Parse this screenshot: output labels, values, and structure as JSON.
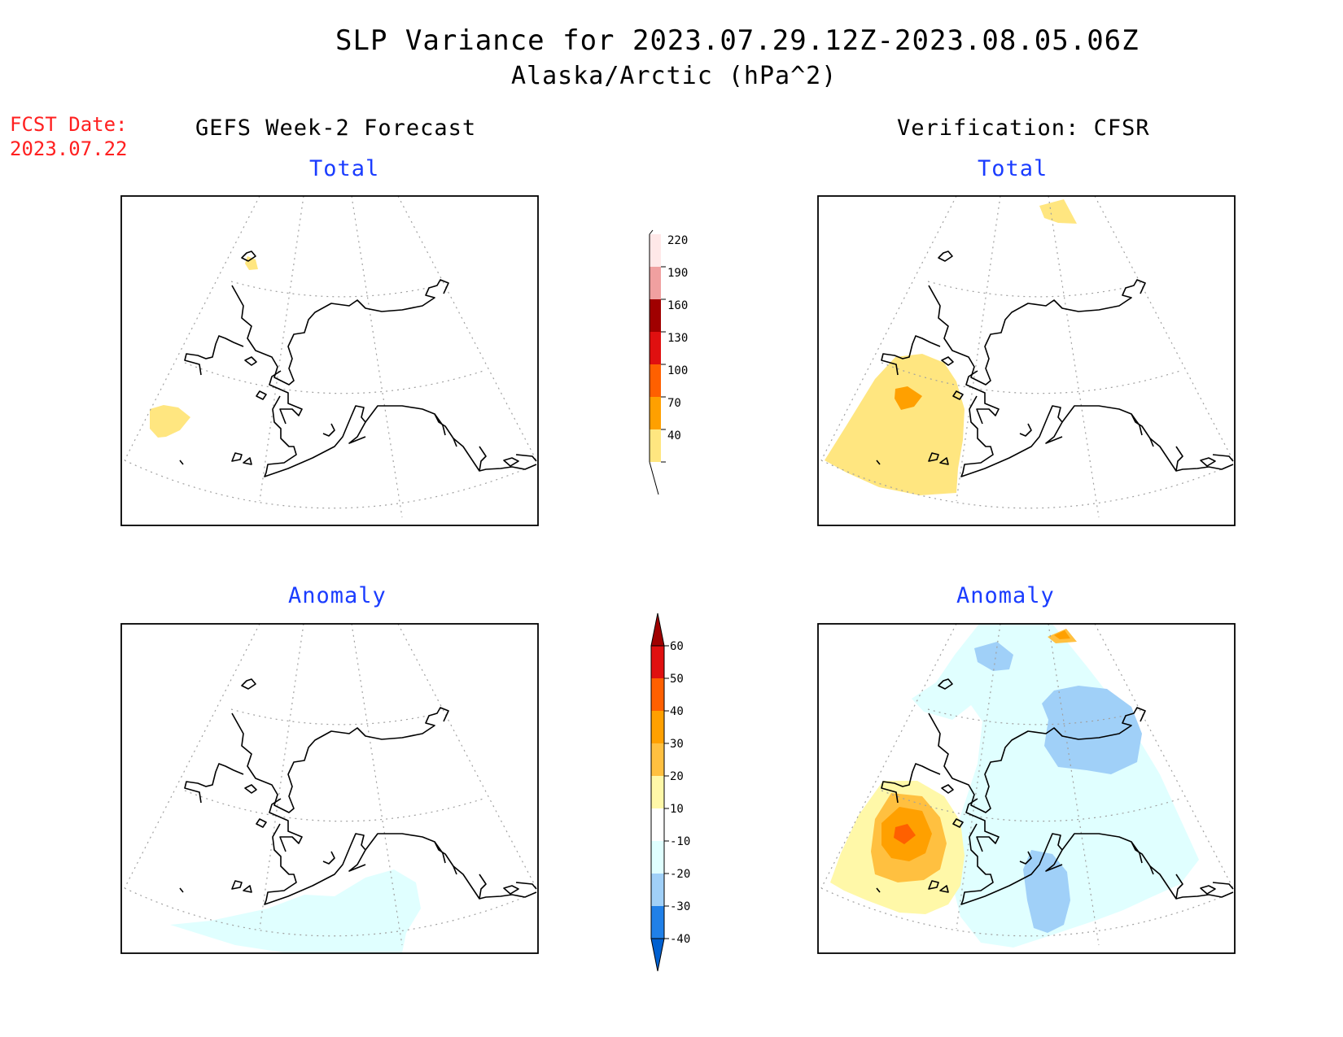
{
  "header": {
    "title": "SLP Variance for 2023.07.29.12Z-2023.08.05.06Z",
    "subtitle": "Alaska/Arctic (hPa^2)"
  },
  "forecast_date": {
    "label": "FCST Date:",
    "value": "2023.07.22"
  },
  "columns": {
    "left": "GEFS Week-2 Forecast",
    "right": "Verification: CFSR"
  },
  "panels": {
    "top_left": "Total",
    "top_right": "Total",
    "bottom_left": "Anomaly",
    "bottom_right": "Anomaly"
  },
  "legends": {
    "total": {
      "labels": [
        "40",
        "70",
        "100",
        "130",
        "160",
        "190",
        "220"
      ],
      "colors": [
        "#ffe680",
        "#ffa000",
        "#ff6000",
        "#e01010",
        "#a00000",
        "#f0a0a0",
        "#ffe8e8"
      ]
    },
    "anomaly": {
      "labels": [
        "-40",
        "-30",
        "-20",
        "-10",
        "10",
        "20",
        "30",
        "40",
        "50",
        "60"
      ],
      "colors": [
        "#0060d0",
        "#2080e8",
        "#a0d0f8",
        "#e0ffff",
        "#ffffff",
        "#fff8a8",
        "#ffc040",
        "#ffa000",
        "#ff6000",
        "#e01010",
        "#a00000"
      ]
    }
  },
  "fills": {
    "light_yellow": "#ffe680",
    "pale_yellow": "#fff8a8",
    "orange_light": "#ffc040",
    "orange": "#ffa000",
    "orange_dark": "#ff6000",
    "cyan_pale": "#e0ffff",
    "blue_light": "#a0d0f8"
  }
}
